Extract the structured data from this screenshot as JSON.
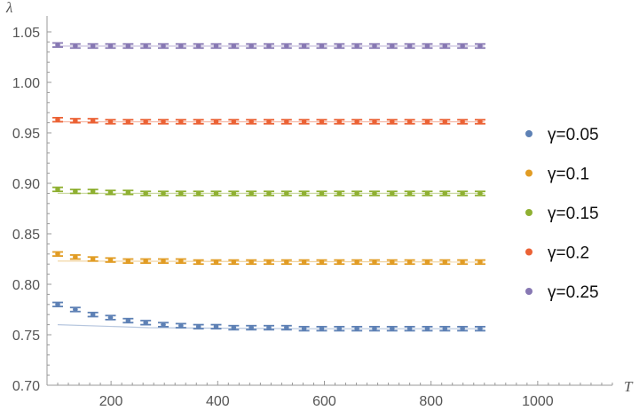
{
  "chart_data": {
    "type": "scatter",
    "title": "",
    "xlabel": "T",
    "ylabel": "λ",
    "xlim": [
      80,
      1140
    ],
    "ylim": [
      0.7,
      1.05
    ],
    "x_ticks": [
      200,
      400,
      600,
      800,
      1000
    ],
    "x_tick_labels": [
      "200",
      "400",
      "600",
      "800",
      "1000"
    ],
    "y_ticks": [
      0.7,
      0.75,
      0.8,
      0.85,
      0.9,
      0.95,
      1.0,
      1.05
    ],
    "y_tick_labels": [
      "0.70",
      "0.75",
      "0.80",
      "0.85",
      "0.90",
      "0.95",
      "1.00",
      "1.05"
    ],
    "grid": false,
    "legend_position": "right",
    "x": [
      100,
      133,
      166,
      199,
      232,
      265,
      298,
      331,
      364,
      397,
      430,
      463,
      496,
      529,
      562,
      595,
      628,
      661,
      694,
      727,
      760,
      793,
      826,
      859,
      892
    ],
    "series": [
      {
        "name": "γ=0.05",
        "color": "#5E81B5",
        "values": [
          0.78,
          0.775,
          0.77,
          0.767,
          0.764,
          0.762,
          0.76,
          0.759,
          0.758,
          0.758,
          0.757,
          0.757,
          0.757,
          0.757,
          0.756,
          0.756,
          0.756,
          0.756,
          0.756,
          0.756,
          0.756,
          0.756,
          0.756,
          0.756,
          0.756
        ],
        "fit": [
          [
            100,
            0.76
          ],
          [
            270,
            0.757
          ],
          [
            560,
            0.756
          ],
          [
            900,
            0.756
          ]
        ]
      },
      {
        "name": "γ=0.1",
        "color": "#E19C24",
        "values": [
          0.83,
          0.827,
          0.825,
          0.824,
          0.823,
          0.823,
          0.823,
          0.823,
          0.822,
          0.822,
          0.822,
          0.822,
          0.822,
          0.822,
          0.822,
          0.822,
          0.822,
          0.822,
          0.822,
          0.822,
          0.822,
          0.822,
          0.822,
          0.822,
          0.822
        ],
        "fit": [
          [
            100,
            0.823
          ],
          [
            900,
            0.822
          ]
        ]
      },
      {
        "name": "γ=0.15",
        "color": "#8FB032",
        "values": [
          0.894,
          0.892,
          0.892,
          0.891,
          0.891,
          0.89,
          0.89,
          0.89,
          0.89,
          0.89,
          0.89,
          0.89,
          0.89,
          0.89,
          0.89,
          0.89,
          0.89,
          0.89,
          0.89,
          0.89,
          0.89,
          0.89,
          0.89,
          0.89,
          0.89
        ],
        "fit": [
          [
            100,
            0.89
          ],
          [
            900,
            0.89
          ]
        ]
      },
      {
        "name": "γ=0.2",
        "color": "#EB6235",
        "values": [
          0.963,
          0.962,
          0.962,
          0.961,
          0.961,
          0.961,
          0.961,
          0.961,
          0.961,
          0.961,
          0.961,
          0.961,
          0.961,
          0.961,
          0.961,
          0.961,
          0.961,
          0.961,
          0.961,
          0.961,
          0.961,
          0.961,
          0.961,
          0.961,
          0.961
        ],
        "fit": [
          [
            100,
            0.961
          ],
          [
            900,
            0.961
          ]
        ]
      },
      {
        "name": "γ=0.25",
        "color": "#8778B3",
        "values": [
          1.037,
          1.036,
          1.036,
          1.036,
          1.036,
          1.036,
          1.036,
          1.036,
          1.036,
          1.036,
          1.036,
          1.036,
          1.036,
          1.036,
          1.036,
          1.036,
          1.036,
          1.036,
          1.036,
          1.036,
          1.036,
          1.036,
          1.036,
          1.036,
          1.036
        ],
        "fit": [
          [
            100,
            1.036
          ],
          [
            900,
            1.036
          ]
        ]
      }
    ],
    "error_bar": 0.002
  },
  "colors": {
    "axis": "#999999",
    "text": "#555555",
    "legend_text": "#111111"
  }
}
